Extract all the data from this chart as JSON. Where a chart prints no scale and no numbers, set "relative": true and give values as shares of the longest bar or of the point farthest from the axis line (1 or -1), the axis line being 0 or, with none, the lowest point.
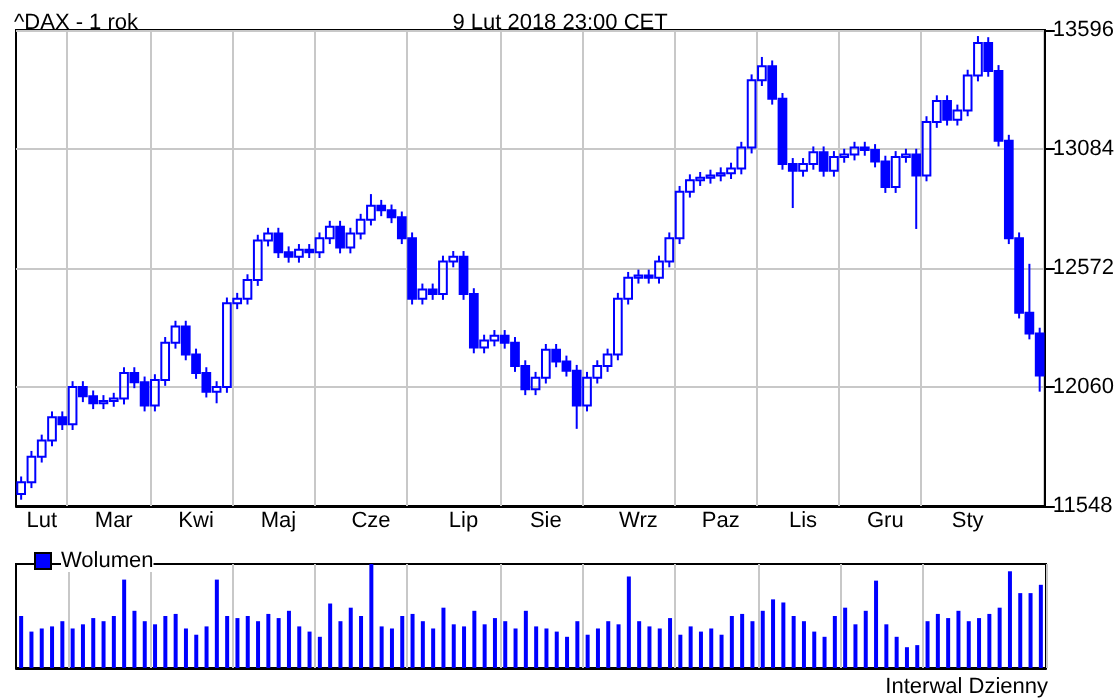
{
  "chart_data": [
    {
      "type": "candlestick",
      "title": "^DAX - 1 rok",
      "subtitle": "9 Lut 2018 23:00 CET",
      "color": "#0000ff",
      "grid": true,
      "categories": [
        null,
        null,
        "Lut",
        null,
        null,
        null,
        null,
        null,
        null,
        "Mar",
        null,
        null,
        null,
        null,
        null,
        null,
        null,
        "Kwi",
        null,
        null,
        null,
        null,
        null,
        null,
        null,
        "Maj",
        null,
        null,
        null,
        null,
        null,
        null,
        null,
        null,
        "Cze",
        null,
        null,
        null,
        null,
        null,
        null,
        null,
        null,
        "Lip",
        null,
        null,
        null,
        null,
        null,
        null,
        null,
        "Sie",
        null,
        null,
        null,
        null,
        null,
        null,
        null,
        null,
        "Wrz",
        null,
        null,
        null,
        null,
        null,
        null,
        null,
        "Paz",
        null,
        null,
        null,
        null,
        null,
        null,
        null,
        "Lis",
        null,
        null,
        null,
        null,
        null,
        null,
        null,
        "Gru",
        null,
        null,
        null,
        null,
        null,
        null,
        null,
        "Sty",
        null,
        null,
        null,
        null,
        null,
        null,
        null
      ],
      "ylim": [
        11548,
        13596
      ],
      "yticks": [
        11548,
        12060,
        12572,
        13084,
        13596
      ],
      "ohlc": [
        [
          11600,
          11675,
          11575,
          11650
        ],
        [
          11650,
          11785,
          11625,
          11760
        ],
        [
          11760,
          11855,
          11735,
          11830
        ],
        [
          11830,
          11955,
          11805,
          11930
        ],
        [
          11930,
          11955,
          11875,
          11900
        ],
        [
          11900,
          12085,
          11875,
          12060
        ],
        [
          12060,
          12085,
          11995,
          12020
        ],
        [
          12020,
          12045,
          11965,
          11990
        ],
        [
          11990,
          12025,
          11965,
          12000
        ],
        [
          12000,
          12035,
          11975,
          12010
        ],
        [
          12010,
          12145,
          11985,
          12120
        ],
        [
          12120,
          12145,
          12055,
          12080
        ],
        [
          12080,
          12105,
          11955,
          11980
        ],
        [
          11980,
          12115,
          11955,
          12090
        ],
        [
          12090,
          12275,
          12065,
          12250
        ],
        [
          12250,
          12345,
          12225,
          12320
        ],
        [
          12320,
          12345,
          12175,
          12200
        ],
        [
          12200,
          12225,
          12095,
          12120
        ],
        [
          12120,
          12145,
          12015,
          12040
        ],
        [
          12040,
          12085,
          11990,
          12060
        ],
        [
          12060,
          12445,
          12035,
          12420
        ],
        [
          12420,
          12465,
          12395,
          12440
        ],
        [
          12440,
          12545,
          12415,
          12520
        ],
        [
          12520,
          12715,
          12495,
          12690
        ],
        [
          12690,
          12745,
          12665,
          12720
        ],
        [
          12720,
          12745,
          12615,
          12640
        ],
        [
          12640,
          12665,
          12595,
          12620
        ],
        [
          12620,
          12675,
          12595,
          12650
        ],
        [
          12650,
          12675,
          12615,
          12640
        ],
        [
          12640,
          12725,
          12615,
          12700
        ],
        [
          12700,
          12775,
          12675,
          12750
        ],
        [
          12750,
          12775,
          12635,
          12660
        ],
        [
          12660,
          12745,
          12635,
          12720
        ],
        [
          12720,
          12805,
          12695,
          12780
        ],
        [
          12780,
          12890,
          12755,
          12840
        ],
        [
          12840,
          12865,
          12795,
          12820
        ],
        [
          12820,
          12845,
          12765,
          12790
        ],
        [
          12790,
          12815,
          12675,
          12700
        ],
        [
          12700,
          12725,
          12415,
          12440
        ],
        [
          12440,
          12505,
          12415,
          12480
        ],
        [
          12480,
          12505,
          12435,
          12460
        ],
        [
          12460,
          12625,
          12435,
          12600
        ],
        [
          12600,
          12645,
          12575,
          12620
        ],
        [
          12620,
          12645,
          12435,
          12460
        ],
        [
          12460,
          12485,
          12205,
          12230
        ],
        [
          12230,
          12285,
          12205,
          12260
        ],
        [
          12260,
          12305,
          12235,
          12280
        ],
        [
          12280,
          12305,
          12225,
          12250
        ],
        [
          12250,
          12275,
          12125,
          12150
        ],
        [
          12150,
          12175,
          12025,
          12050
        ],
        [
          12050,
          12125,
          12025,
          12100
        ],
        [
          12100,
          12245,
          12075,
          12220
        ],
        [
          12220,
          12245,
          12145,
          12170
        ],
        [
          12170,
          12195,
          12105,
          12130
        ],
        [
          12130,
          12155,
          11880,
          11980
        ],
        [
          11980,
          12125,
          11955,
          12100
        ],
        [
          12100,
          12175,
          12075,
          12150
        ],
        [
          12150,
          12225,
          12125,
          12200
        ],
        [
          12200,
          12465,
          12175,
          12440
        ],
        [
          12440,
          12555,
          12415,
          12530
        ],
        [
          12530,
          12565,
          12505,
          12540
        ],
        [
          12540,
          12565,
          12505,
          12530
        ],
        [
          12530,
          12625,
          12505,
          12600
        ],
        [
          12600,
          12725,
          12575,
          12700
        ],
        [
          12700,
          12925,
          12675,
          12900
        ],
        [
          12900,
          12975,
          12875,
          12950
        ],
        [
          12950,
          12985,
          12925,
          12960
        ],
        [
          12960,
          12995,
          12935,
          12970
        ],
        [
          12970,
          13005,
          12945,
          12980
        ],
        [
          12980,
          13025,
          12955,
          13000
        ],
        [
          13000,
          13115,
          12975,
          13090
        ],
        [
          13090,
          13405,
          13065,
          13380
        ],
        [
          13380,
          13480,
          13355,
          13440
        ],
        [
          13440,
          13465,
          13275,
          13300
        ],
        [
          13300,
          13325,
          12995,
          13020
        ],
        [
          13020,
          13045,
          12830,
          12990
        ],
        [
          12990,
          13045,
          12965,
          13020
        ],
        [
          13020,
          13095,
          12995,
          13070
        ],
        [
          13070,
          13095,
          12965,
          12990
        ],
        [
          12990,
          13075,
          12965,
          13050
        ],
        [
          13050,
          13085,
          13025,
          13060
        ],
        [
          13060,
          13115,
          13035,
          13090
        ],
        [
          13090,
          13115,
          13055,
          13080
        ],
        [
          13080,
          13105,
          13005,
          13030
        ],
        [
          13030,
          13055,
          12895,
          12920
        ],
        [
          12920,
          13075,
          12895,
          13050
        ],
        [
          13050,
          13085,
          13025,
          13060
        ],
        [
          13060,
          13085,
          12740,
          12970
        ],
        [
          12970,
          13225,
          12945,
          13200
        ],
        [
          13200,
          13315,
          13175,
          13290
        ],
        [
          13290,
          13315,
          13185,
          13210
        ],
        [
          13210,
          13275,
          13185,
          13250
        ],
        [
          13250,
          13425,
          13225,
          13400
        ],
        [
          13400,
          13570,
          13375,
          13540
        ],
        [
          13540,
          13565,
          13395,
          13420
        ],
        [
          13420,
          13445,
          13095,
          13120
        ],
        [
          13120,
          13145,
          12675,
          12700
        ],
        [
          12700,
          12725,
          12355,
          12380
        ],
        [
          12380,
          12590,
          12265,
          12290
        ],
        [
          12290,
          12315,
          12040,
          12110
        ]
      ]
    },
    {
      "type": "bar",
      "relative": true,
      "grid": "x",
      "legend": "top left",
      "annotations": [
        "Interwal Dzienny"
      ],
      "categories": [
        null,
        null,
        null,
        null,
        null,
        null,
        null,
        null,
        null,
        null,
        null,
        null,
        null,
        null,
        null,
        null,
        null,
        null,
        null,
        null,
        null,
        null,
        null,
        null,
        null,
        null,
        null,
        null,
        null,
        null,
        null,
        null,
        null,
        null,
        null,
        null,
        null,
        null,
        null,
        null,
        null,
        null,
        null,
        null,
        null,
        null,
        null,
        null,
        null,
        null,
        null,
        null,
        null,
        null,
        null,
        null,
        null,
        null,
        null,
        null,
        null,
        null,
        null,
        null,
        null,
        null,
        null,
        null,
        null,
        null,
        null,
        null,
        null,
        null,
        null,
        null,
        null,
        null,
        null,
        null,
        null,
        null,
        null,
        null,
        null,
        null,
        null,
        null,
        null,
        null,
        null,
        null,
        null,
        null,
        null,
        null,
        null,
        null,
        null,
        null
      ],
      "series": [
        {
          "name": "Wolumen",
          "color": "#0000ff",
          "values": [
            0.5,
            0.35,
            0.38,
            0.4,
            0.45,
            0.38,
            0.42,
            0.48,
            0.45,
            0.5,
            0.85,
            0.55,
            0.45,
            0.42,
            0.5,
            0.52,
            0.38,
            0.32,
            0.4,
            0.85,
            0.5,
            0.48,
            0.5,
            0.45,
            0.52,
            0.48,
            0.55,
            0.4,
            0.35,
            0.3,
            0.62,
            0.45,
            0.58,
            0.5,
            1.0,
            0.4,
            0.38,
            0.5,
            0.52,
            0.45,
            0.38,
            0.58,
            0.42,
            0.4,
            0.55,
            0.42,
            0.48,
            0.45,
            0.38,
            0.55,
            0.4,
            0.38,
            0.35,
            0.3,
            0.45,
            0.32,
            0.38,
            0.45,
            0.42,
            0.88,
            0.45,
            0.4,
            0.38,
            0.48,
            0.32,
            0.4,
            0.35,
            0.38,
            0.32,
            0.5,
            0.52,
            0.45,
            0.55,
            0.66,
            0.63,
            0.5,
            0.45,
            0.35,
            0.3,
            0.5,
            0.58,
            0.42,
            0.55,
            0.84,
            0.42,
            0.3,
            0.2,
            0.22,
            0.45,
            0.52,
            0.48,
            0.55,
            0.45,
            0.48,
            0.52,
            0.58,
            0.93,
            0.72,
            0.72,
            0.8
          ]
        }
      ]
    }
  ]
}
